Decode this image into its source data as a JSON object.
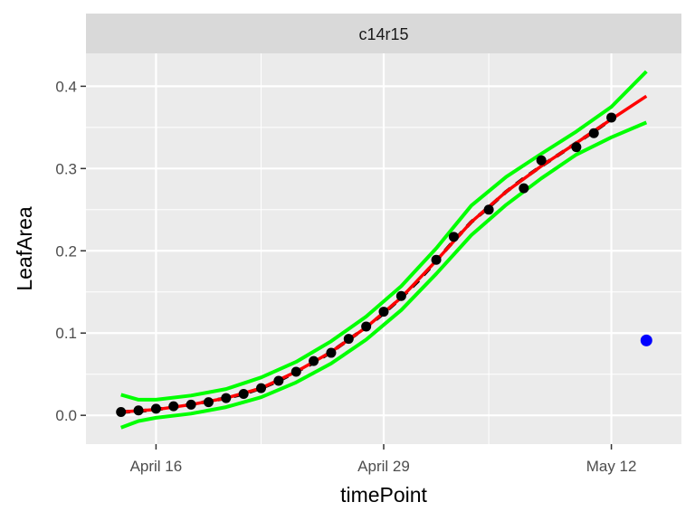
{
  "chart_data": {
    "type": "line",
    "panel_title": "c14r15",
    "xlabel": "timePoint",
    "ylabel": "LeafArea",
    "x_axis_type": "date",
    "x_tick_labels": [
      {
        "label": "April 16",
        "date": "2023-04-16"
      },
      {
        "label": "April 29",
        "date": "2023-04-29"
      },
      {
        "label": "May 12",
        "date": "2023-05-12"
      }
    ],
    "x_minor_dates": [
      "2023-04-22",
      "2023-05-05"
    ],
    "xlim": [
      "2023-04-12",
      "2023-05-16"
    ],
    "ylim": [
      -0.035,
      0.44
    ],
    "y_ticks": [
      0.0,
      0.1,
      0.2,
      0.3,
      0.4
    ],
    "y_tick_labels": [
      "0.0",
      "0.1",
      "0.2",
      "0.3",
      "0.4"
    ],
    "grid": true,
    "colors": {
      "observed": "#000000",
      "fitted": "#000000",
      "trend": "#ff0000",
      "band": "#00ff00",
      "outlier": "#0000ff",
      "panel_bg": "#ebebeb",
      "strip_bg": "#d9d9d9",
      "grid": "#ffffff"
    },
    "observed_points": [
      {
        "x": "2023-04-14",
        "y": 0.004
      },
      {
        "x": "2023-04-15",
        "y": 0.006
      },
      {
        "x": "2023-04-16",
        "y": 0.008
      },
      {
        "x": "2023-04-17",
        "y": 0.011
      },
      {
        "x": "2023-04-18",
        "y": 0.013
      },
      {
        "x": "2023-04-19",
        "y": 0.016
      },
      {
        "x": "2023-04-20",
        "y": 0.021
      },
      {
        "x": "2023-04-21",
        "y": 0.026
      },
      {
        "x": "2023-04-22",
        "y": 0.033
      },
      {
        "x": "2023-04-23",
        "y": 0.042
      },
      {
        "x": "2023-04-24",
        "y": 0.053
      },
      {
        "x": "2023-04-25",
        "y": 0.066
      },
      {
        "x": "2023-04-26",
        "y": 0.076
      },
      {
        "x": "2023-04-27",
        "y": 0.093
      },
      {
        "x": "2023-04-28",
        "y": 0.108
      },
      {
        "x": "2023-04-29",
        "y": 0.126
      },
      {
        "x": "2023-04-30",
        "y": 0.145
      },
      {
        "x": "2023-05-02",
        "y": 0.189
      },
      {
        "x": "2023-05-03",
        "y": 0.217
      },
      {
        "x": "2023-05-05",
        "y": 0.25
      },
      {
        "x": "2023-05-07",
        "y": 0.276
      },
      {
        "x": "2023-05-08",
        "y": 0.31
      },
      {
        "x": "2023-05-10",
        "y": 0.326
      },
      {
        "x": "2023-05-11",
        "y": 0.343
      },
      {
        "x": "2023-05-12",
        "y": 0.362
      }
    ],
    "fitted_points": [
      {
        "x": "2023-04-14",
        "y": 0.004
      },
      {
        "x": "2023-04-15",
        "y": 0.005
      },
      {
        "x": "2023-04-16",
        "y": 0.007
      },
      {
        "x": "2023-04-17",
        "y": 0.01
      },
      {
        "x": "2023-04-18",
        "y": 0.013
      },
      {
        "x": "2023-04-19",
        "y": 0.017
      },
      {
        "x": "2023-04-20",
        "y": 0.021
      },
      {
        "x": "2023-04-21",
        "y": 0.026
      },
      {
        "x": "2023-04-22",
        "y": 0.033
      },
      {
        "x": "2023-04-23",
        "y": 0.042
      },
      {
        "x": "2023-04-24",
        "y": 0.053
      },
      {
        "x": "2023-04-25",
        "y": 0.064
      },
      {
        "x": "2023-04-26",
        "y": 0.077
      },
      {
        "x": "2023-04-27",
        "y": 0.092
      },
      {
        "x": "2023-04-28",
        "y": 0.107
      },
      {
        "x": "2023-04-29",
        "y": 0.124
      },
      {
        "x": "2023-04-30",
        "y": 0.143
      },
      {
        "x": "2023-05-01",
        "y": 0.164
      },
      {
        "x": "2023-05-02",
        "y": 0.188
      },
      {
        "x": "2023-05-03",
        "y": 0.212
      },
      {
        "x": "2023-05-04",
        "y": 0.235
      },
      {
        "x": "2023-05-05",
        "y": 0.253
      },
      {
        "x": "2023-05-06",
        "y": 0.272
      },
      {
        "x": "2023-05-07",
        "y": 0.288
      },
      {
        "x": "2023-05-08",
        "y": 0.303
      },
      {
        "x": "2023-05-09",
        "y": 0.317
      },
      {
        "x": "2023-05-10",
        "y": 0.331
      },
      {
        "x": "2023-05-11",
        "y": 0.345
      },
      {
        "x": "2023-05-12",
        "y": 0.36
      }
    ],
    "trend_line": [
      {
        "x": "2023-04-14",
        "y": 0.004
      },
      {
        "x": "2023-04-16",
        "y": 0.007
      },
      {
        "x": "2023-04-18",
        "y": 0.013
      },
      {
        "x": "2023-04-20",
        "y": 0.021
      },
      {
        "x": "2023-04-22",
        "y": 0.033
      },
      {
        "x": "2023-04-24",
        "y": 0.053
      },
      {
        "x": "2023-04-26",
        "y": 0.077
      },
      {
        "x": "2023-04-28",
        "y": 0.107
      },
      {
        "x": "2023-04-30",
        "y": 0.143
      },
      {
        "x": "2023-05-02",
        "y": 0.188
      },
      {
        "x": "2023-05-04",
        "y": 0.235
      },
      {
        "x": "2023-05-06",
        "y": 0.272
      },
      {
        "x": "2023-05-08",
        "y": 0.303
      },
      {
        "x": "2023-05-10",
        "y": 0.331
      },
      {
        "x": "2023-05-12",
        "y": 0.36
      },
      {
        "x": "2023-05-14",
        "y": 0.388
      }
    ],
    "upper_band": [
      {
        "x": "2023-04-14",
        "y": 0.025
      },
      {
        "x": "2023-04-15",
        "y": 0.019
      },
      {
        "x": "2023-04-16",
        "y": 0.019
      },
      {
        "x": "2023-04-18",
        "y": 0.024
      },
      {
        "x": "2023-04-20",
        "y": 0.032
      },
      {
        "x": "2023-04-22",
        "y": 0.046
      },
      {
        "x": "2023-04-24",
        "y": 0.065
      },
      {
        "x": "2023-04-26",
        "y": 0.09
      },
      {
        "x": "2023-04-28",
        "y": 0.12
      },
      {
        "x": "2023-04-30",
        "y": 0.157
      },
      {
        "x": "2023-05-02",
        "y": 0.203
      },
      {
        "x": "2023-05-04",
        "y": 0.255
      },
      {
        "x": "2023-05-06",
        "y": 0.29
      },
      {
        "x": "2023-05-08",
        "y": 0.318
      },
      {
        "x": "2023-05-10",
        "y": 0.345
      },
      {
        "x": "2023-05-12",
        "y": 0.375
      },
      {
        "x": "2023-05-14",
        "y": 0.418
      }
    ],
    "lower_band": [
      {
        "x": "2023-04-14",
        "y": -0.015
      },
      {
        "x": "2023-04-15",
        "y": -0.007
      },
      {
        "x": "2023-04-16",
        "y": -0.003
      },
      {
        "x": "2023-04-18",
        "y": 0.002
      },
      {
        "x": "2023-04-20",
        "y": 0.01
      },
      {
        "x": "2023-04-22",
        "y": 0.022
      },
      {
        "x": "2023-04-24",
        "y": 0.04
      },
      {
        "x": "2023-04-26",
        "y": 0.063
      },
      {
        "x": "2023-04-28",
        "y": 0.092
      },
      {
        "x": "2023-04-30",
        "y": 0.128
      },
      {
        "x": "2023-05-02",
        "y": 0.172
      },
      {
        "x": "2023-05-04",
        "y": 0.219
      },
      {
        "x": "2023-05-06",
        "y": 0.256
      },
      {
        "x": "2023-05-08",
        "y": 0.288
      },
      {
        "x": "2023-05-10",
        "y": 0.317
      },
      {
        "x": "2023-05-12",
        "y": 0.338
      },
      {
        "x": "2023-05-14",
        "y": 0.356
      }
    ],
    "outlier_points": [
      {
        "x": "2023-05-14",
        "y": 0.091
      }
    ]
  }
}
